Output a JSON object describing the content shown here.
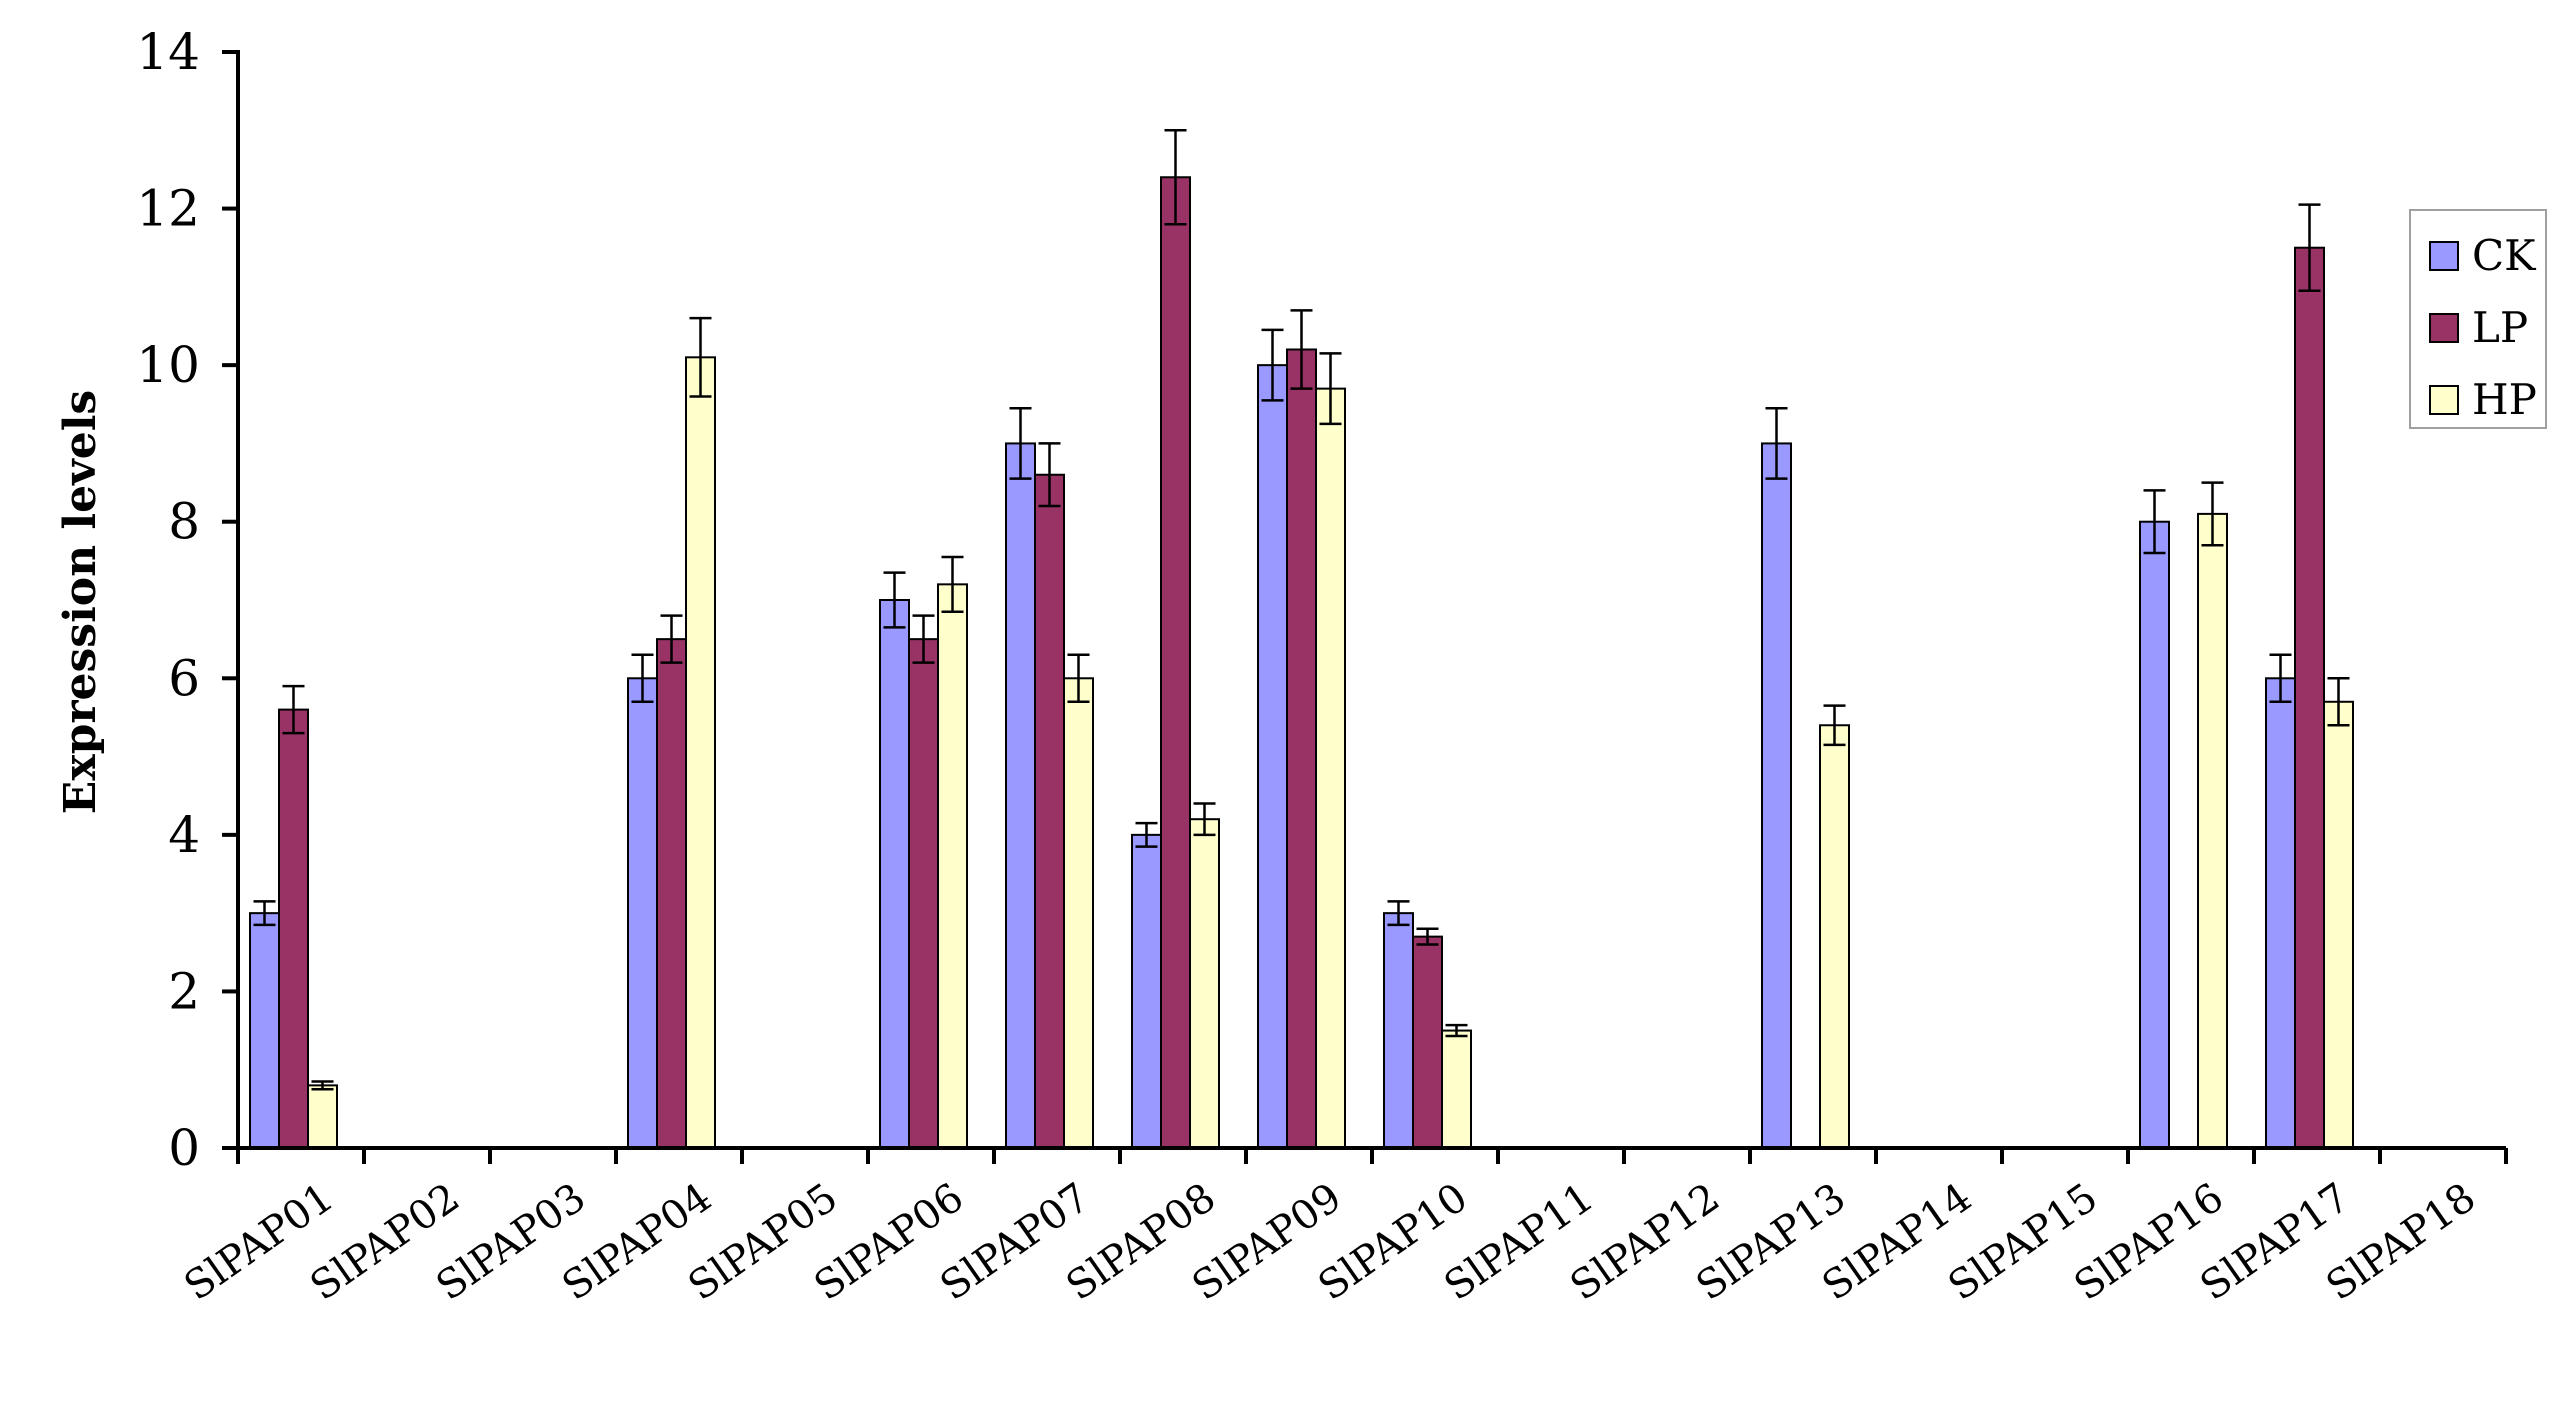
{
  "chart_data": {
    "type": "bar",
    "ylabel": "Expression levels",
    "xlabel": "",
    "ylim": [
      0,
      14
    ],
    "yticks": [
      0,
      2,
      4,
      6,
      8,
      10,
      12,
      14
    ],
    "grid": false,
    "legend_position": "right",
    "categories": [
      "SlPAP01",
      "SlPAP02",
      "SlPAP03",
      "SlPAP04",
      "SlPAP05",
      "SlPAP06",
      "SlPAP07",
      "SlPAP08",
      "SlPAP09",
      "SlPAP10",
      "SlPAP11",
      "SlPAP12",
      "SlPAP13",
      "SlPAP14",
      "SlPAP15",
      "SlPAP16",
      "SlPAP17",
      "SlPAP18"
    ],
    "series": [
      {
        "name": "CK",
        "color": "#9999ff",
        "values": [
          3.0,
          0,
          0,
          6.0,
          0,
          7.0,
          9.0,
          4.0,
          10.0,
          3.0,
          0,
          0,
          9.0,
          0,
          0,
          8.0,
          6.0,
          0
        ],
        "errors": [
          0.15,
          0,
          0,
          0.3,
          0,
          0.35,
          0.45,
          0.15,
          0.45,
          0.15,
          0,
          0,
          0.45,
          0,
          0,
          0.4,
          0.3,
          0
        ]
      },
      {
        "name": "LP",
        "color": "#993366",
        "values": [
          5.6,
          0,
          0,
          6.5,
          0,
          6.5,
          8.6,
          12.4,
          10.2,
          2.7,
          0,
          0,
          0,
          0,
          0,
          0,
          11.5,
          0
        ],
        "errors": [
          0.3,
          0,
          0,
          0.3,
          0,
          0.3,
          0.4,
          0.6,
          0.5,
          0.1,
          0,
          0,
          0,
          0,
          0,
          0,
          0.55,
          0
        ]
      },
      {
        "name": "HP",
        "color": "#ffffcc",
        "values": [
          0.8,
          0,
          0,
          10.1,
          0,
          7.2,
          6.0,
          4.2,
          9.7,
          1.5,
          0,
          0,
          5.4,
          0,
          0,
          8.1,
          5.7,
          0
        ],
        "errors": [
          0.05,
          0,
          0,
          0.5,
          0,
          0.35,
          0.3,
          0.2,
          0.45,
          0.07,
          0,
          0,
          0.25,
          0,
          0,
          0.4,
          0.3,
          0
        ]
      }
    ]
  }
}
